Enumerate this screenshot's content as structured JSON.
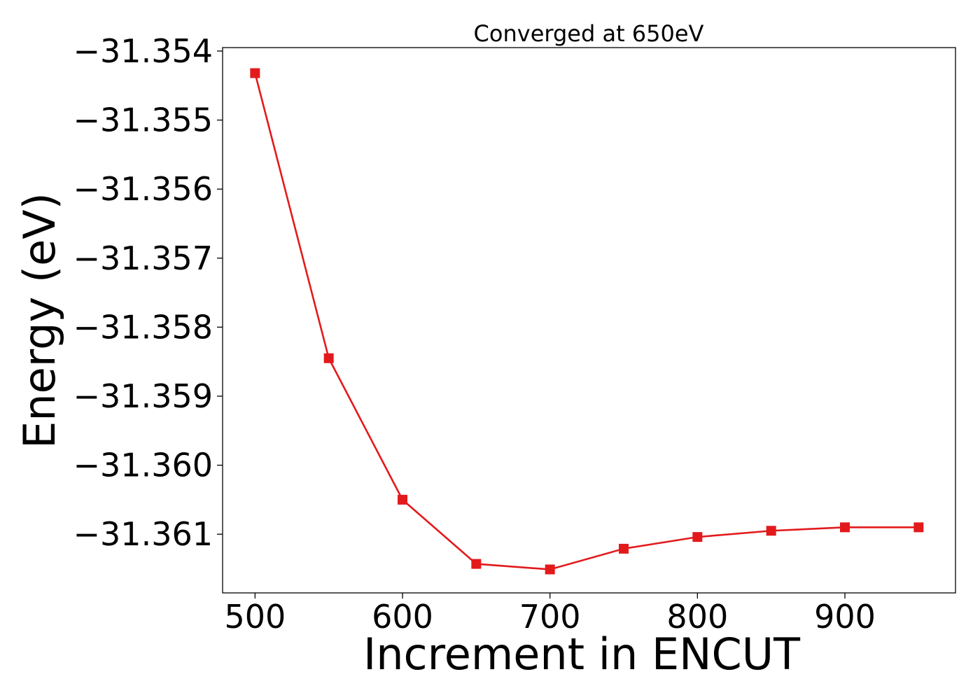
{
  "chart_data": {
    "type": "line",
    "title": "Converged at 650eV",
    "xlabel": "Increment in ENCUT",
    "ylabel": "Energy (eV)",
    "xlim": [
      478,
      975
    ],
    "ylim": [
      -31.36185,
      -31.35395
    ],
    "x_ticks": [
      500,
      600,
      700,
      800,
      900
    ],
    "x_tick_labels": [
      "500",
      "600",
      "700",
      "800",
      "900"
    ],
    "y_ticks": [
      -31.354,
      -31.355,
      -31.356,
      -31.357,
      -31.358,
      -31.359,
      -31.36,
      -31.361
    ],
    "y_tick_labels": [
      "−31.354",
      "−31.355",
      "−31.356",
      "−31.357",
      "−31.358",
      "−31.359",
      "−31.360",
      "−31.361"
    ],
    "grid": false,
    "series": [
      {
        "color": "#e31a1c",
        "marker": "square",
        "x": [
          500,
          550,
          600,
          650,
          700,
          750,
          800,
          850,
          900,
          950
        ],
        "y": [
          -31.35432,
          -31.35845,
          -31.3605,
          -31.36143,
          -31.36151,
          -31.36121,
          -31.36104,
          -31.36095,
          -31.3609,
          -31.3609
        ]
      }
    ]
  }
}
